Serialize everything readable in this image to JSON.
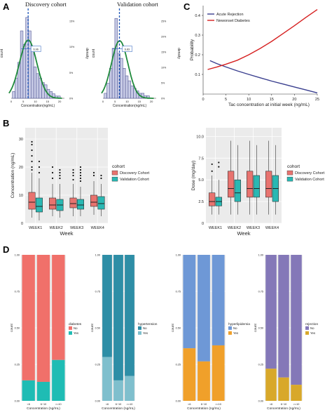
{
  "panel_labels": [
    "A",
    "B",
    "C",
    "D"
  ],
  "chart_data": [
    {
      "id": "A1",
      "type": "bar",
      "title": "Discovery  cohort",
      "xlabel": "Concentration(ng/mL)",
      "ylabel": "count",
      "ylabel_right": "density",
      "mean_label": "6.96",
      "right_ticks": [
        "0%",
        "5%",
        "10%",
        "15%"
      ],
      "x_ticks": [
        "0",
        "5",
        "10",
        "15",
        "20"
      ],
      "xlim": [
        0,
        22
      ],
      "values": [
        3,
        9,
        16,
        30,
        24,
        36,
        30,
        22,
        14,
        11,
        9,
        7,
        6,
        4,
        3,
        2,
        1,
        1
      ],
      "bin_start": 0.5,
      "bin_width": 1.1,
      "ylim": [
        0,
        40
      ],
      "mean_x": 7.0,
      "fit": {
        "mean": 7.0,
        "sd": 3.6
      }
    },
    {
      "id": "A2",
      "type": "bar",
      "title": "Validation cohort",
      "xlabel": "Concentration(ng/mL)",
      "ylabel": "count",
      "ylabel_right": "density",
      "mean_label": "6.83",
      "right_ticks": [
        "0%",
        "5%",
        "10%",
        "15%",
        "20%",
        "25%"
      ],
      "x_ticks": [
        "0",
        "5",
        "10",
        "15",
        "20"
      ],
      "xlim": [
        0,
        22
      ],
      "values": [
        2,
        6,
        12,
        20,
        32,
        18,
        16,
        12,
        9,
        7,
        5,
        4,
        3,
        2,
        2,
        1,
        1
      ],
      "bin_start": 0.5,
      "bin_width": 1.1,
      "ylim": [
        0,
        36
      ],
      "mean_x": 6.8,
      "fit": {
        "mean": 6.9,
        "sd": 3.4
      }
    },
    {
      "id": "C",
      "type": "line",
      "xlabel": "Tac concentration at initial week (ng/mL)",
      "ylabel": "Probability",
      "xlim": [
        0,
        27
      ],
      "ylim": [
        0,
        0.45
      ],
      "x_ticks": [
        0,
        5,
        10,
        15,
        20,
        25
      ],
      "y_ticks": [
        0.1,
        0.2,
        0.3,
        0.4
      ],
      "legend": "top-left",
      "series": [
        {
          "name": "Acute Rejection",
          "color": "#3a3f8f",
          "x": [
            1.5,
            3,
            5,
            7.5,
            10,
            12.5,
            15,
            17.5,
            20,
            22.5,
            25
          ],
          "y": [
            0.17,
            0.155,
            0.138,
            0.118,
            0.1,
            0.083,
            0.066,
            0.051,
            0.036,
            0.021,
            0.006
          ]
        },
        {
          "name": "Newonset Diabetes",
          "color": "#d62020",
          "x": [
            1,
            3,
            5,
            7.5,
            10,
            12.5,
            15,
            17.5,
            20,
            22.5,
            25
          ],
          "y": [
            0.125,
            0.138,
            0.152,
            0.172,
            0.2,
            0.232,
            0.268,
            0.308,
            0.348,
            0.39,
            0.43
          ]
        }
      ]
    },
    {
      "id": "B1",
      "type": "box",
      "xlabel": "Week",
      "ylabel": "Concentration (ng/mL)",
      "categories": [
        "WEEK1",
        "WEEK2",
        "WEEK3",
        "WEEK4"
      ],
      "y_ticks": [
        0,
        10,
        20,
        30
      ],
      "ylim": [
        0,
        34
      ],
      "legend_title": "cohort",
      "legend": "right",
      "series": [
        {
          "name": "Discovery Cohort",
          "color": "#e8736f",
          "boxes": [
            [
              2,
              5,
              7.5,
              11,
              18
            ],
            [
              2.5,
              5,
              6.5,
              9,
              14
            ],
            [
              2.5,
              5.5,
              7,
              9,
              14
            ],
            [
              3,
              6,
              7.5,
              10,
              15
            ]
          ],
          "outliers": [
            [
              19,
              20,
              22,
              24,
              26,
              28,
              29
            ],
            [
              16,
              18,
              20
            ],
            [
              15.5,
              17,
              18,
              19
            ],
            [
              17,
              18
            ]
          ]
        },
        {
          "name": "Validation Cohort",
          "color": "#2ab8b3",
          "boxes": [
            [
              1,
              4,
              6,
              9,
              16
            ],
            [
              2,
              4.5,
              6.5,
              8.5,
              14
            ],
            [
              2.5,
              5,
              6.5,
              8.5,
              13
            ],
            [
              2.5,
              5,
              7,
              9.5,
              14
            ]
          ],
          "outliers": [
            [
              18,
              20,
              22
            ],
            [
              16,
              17,
              18,
              19
            ],
            [
              15,
              16,
              17,
              18,
              19,
              20
            ],
            [
              16,
              17
            ]
          ]
        }
      ]
    },
    {
      "id": "B2",
      "type": "box",
      "xlabel": "Week",
      "ylabel": "Dose (mg/day)",
      "categories": [
        "WEEK1",
        "WEEK2",
        "WEEK3",
        "WEEK4"
      ],
      "y_ticks": [
        0,
        2.5,
        5,
        7.5,
        10
      ],
      "y_tick_labels": [
        "0",
        "2.5",
        "5.0",
        "7.5",
        "10.0"
      ],
      "ylim": [
        0,
        11
      ],
      "legend_title": "cohort",
      "legend": "right",
      "series": [
        {
          "name": "Discovery Cohort",
          "color": "#e8736f",
          "boxes": [
            [
              1,
              2,
              2.5,
              3.5,
              5.5
            ],
            [
              1,
              3,
              4,
              6,
              9.5
            ],
            [
              1,
              3,
              4,
              6,
              9.5
            ],
            [
              1,
              3,
              4,
              6,
              9.5
            ]
          ],
          "outliers": [
            [
              6,
              6.8
            ],
            [],
            [],
            []
          ]
        },
        {
          "name": "Validation Cohort",
          "color": "#2ab8b3",
          "boxes": [
            [
              1,
              2,
              2.5,
              3,
              5
            ],
            [
              1,
              2.5,
              3.5,
              5,
              9
            ],
            [
              1,
              3,
              4,
              5.5,
              9
            ],
            [
              1,
              2.5,
              4,
              5.5,
              9
            ]
          ],
          "outliers": [
            [
              6.5,
              7
            ],
            [],
            [],
            []
          ]
        }
      ]
    },
    {
      "id": "D1",
      "type": "bar",
      "stacked": true,
      "xlabel": "Concentration (ng/mL)",
      "ylabel": "count",
      "categories": [
        "<6",
        "6~10",
        ">=10"
      ],
      "y_ticks": [
        "0.00",
        "0.25",
        "0.50",
        "0.75",
        "1.00"
      ],
      "legend_title": "diabetes",
      "series": [
        {
          "name": "No",
          "color": "#f0706a",
          "values": [
            0.86,
            0.87,
            0.72
          ]
        },
        {
          "name": "Yes",
          "color": "#1fbcb4",
          "values": [
            0.14,
            0.13,
            0.28
          ]
        }
      ]
    },
    {
      "id": "D2",
      "type": "bar",
      "stacked": true,
      "xlabel": "Concentration (ng/mL)",
      "ylabel": "count",
      "categories": [
        "<6",
        "6~10",
        ">=10"
      ],
      "y_ticks": [
        "0.00",
        "0.25",
        "0.50",
        "0.75",
        "1.00"
      ],
      "legend_title": "hypertension",
      "series": [
        {
          "name": "No",
          "color": "#2e8ea6",
          "values": [
            0.7,
            0.86,
            0.83
          ]
        },
        {
          "name": "Yes",
          "color": "#7fbfcd",
          "values": [
            0.3,
            0.14,
            0.17
          ]
        }
      ]
    },
    {
      "id": "D3",
      "type": "bar",
      "stacked": true,
      "xlabel": "Concentration (ng/mL)",
      "ylabel": "count",
      "categories": [
        "<6",
        "6~10",
        ">=10"
      ],
      "y_ticks": [
        "0.00",
        "0.25",
        "0.50",
        "0.75",
        "1.00"
      ],
      "legend_title": "hyperlipidemia",
      "series": [
        {
          "name": "No",
          "color": "#6e98d6",
          "values": [
            0.64,
            0.73,
            0.62
          ]
        },
        {
          "name": "Yes",
          "color": "#f0a02a",
          "values": [
            0.36,
            0.27,
            0.38
          ]
        }
      ]
    },
    {
      "id": "D4",
      "type": "bar",
      "stacked": true,
      "xlabel": "Concentration (ng/mL)",
      "ylabel": "count",
      "categories": [
        "<6",
        "6~10",
        ">=10"
      ],
      "y_ticks": [
        "0.00",
        "0.25",
        "0.50",
        "0.75",
        "1.00"
      ],
      "legend_title": "rejection",
      "series": [
        {
          "name": "No",
          "color": "#8478b8",
          "values": [
            0.78,
            0.84,
            0.89
          ]
        },
        {
          "name": "Yes",
          "color": "#d8a82a",
          "values": [
            0.22,
            0.16,
            0.11
          ]
        }
      ]
    }
  ]
}
